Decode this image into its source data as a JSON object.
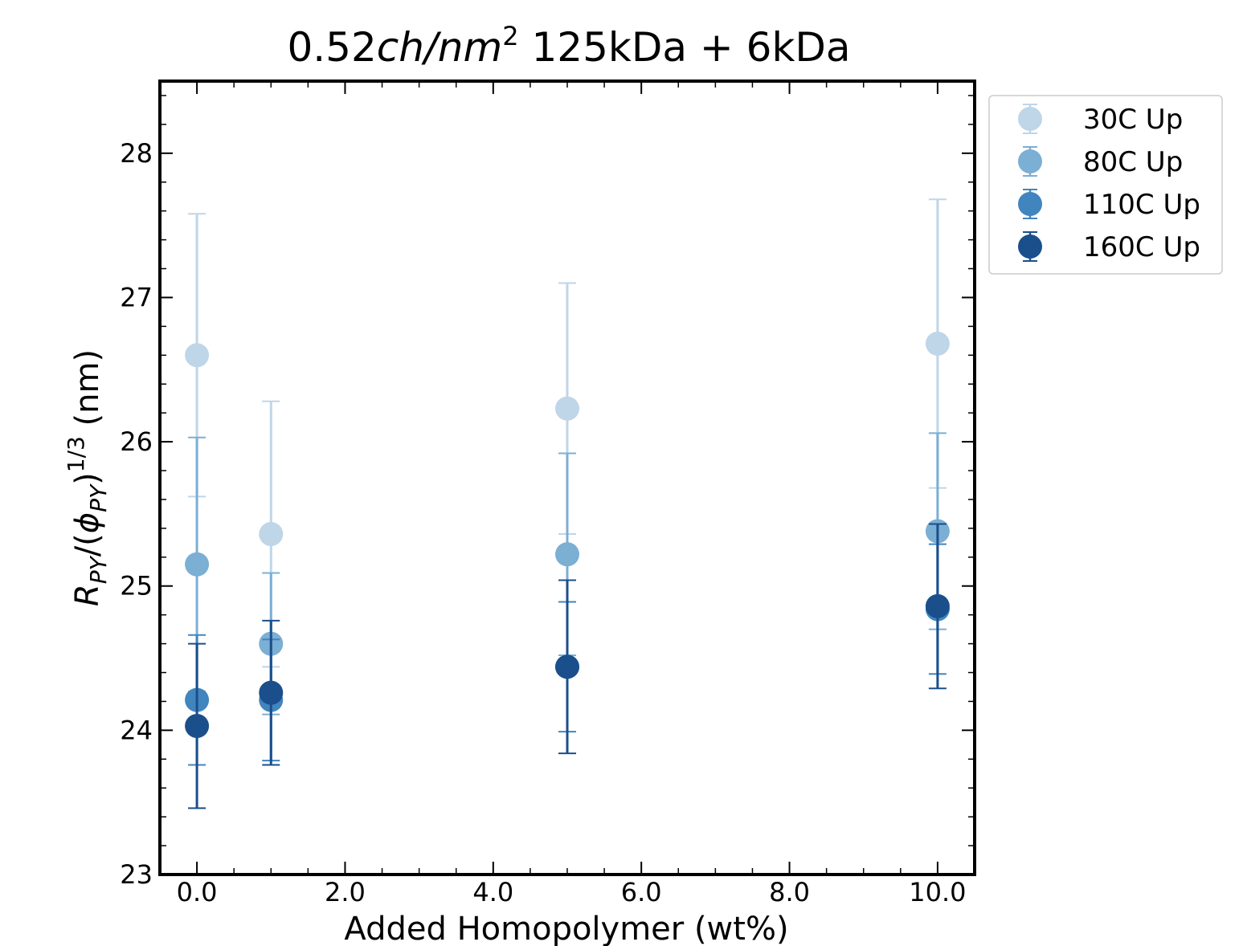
{
  "chart_data": {
    "type": "scatter",
    "title": {
      "part1": "0.52",
      "part2_italic": "ch/nm",
      "sup": "2",
      "part3": " 125kDa + 6kDa"
    },
    "xlabel": "Added Homopolymer (wt%)",
    "ylabel": {
      "r": "R",
      "r_sub": "PY",
      "mid": "/(",
      "phi": "ϕ",
      "phi_sub": "PY",
      "close": ")",
      "sup": "1/3",
      "unit": " (nm)"
    },
    "xlim": [
      -0.5,
      10.5
    ],
    "ylim": [
      23,
      28.5
    ],
    "x_ticks": [
      0,
      2,
      4,
      6,
      8,
      10
    ],
    "x_tick_labels": [
      "0.0",
      "2.0",
      "4.0",
      "6.0",
      "8.0",
      "10.0"
    ],
    "y_ticks": [
      23,
      24,
      25,
      26,
      27,
      28
    ],
    "y_tick_labels": [
      "23",
      "24",
      "25",
      "26",
      "27",
      "28"
    ],
    "x_minor_step": 0.5,
    "y_minor_step": 0.2,
    "grid": false,
    "legend_position": "outside-top-right",
    "series": [
      {
        "name": "30C Up",
        "color": "#bfd5e8",
        "x": [
          0,
          1,
          5,
          10
        ],
        "y": [
          26.6,
          25.36,
          26.23,
          26.68
        ],
        "err": [
          0.98,
          0.92,
          0.87,
          1.0
        ]
      },
      {
        "name": "80C Up",
        "color": "#7bafd4",
        "x": [
          0,
          1,
          5,
          10
        ],
        "y": [
          25.15,
          24.6,
          25.22,
          25.38
        ],
        "err": [
          0.88,
          0.49,
          0.7,
          0.68
        ]
      },
      {
        "name": "110C Up",
        "color": "#4185bf",
        "x": [
          0,
          1,
          5,
          10
        ],
        "y": [
          24.21,
          24.21,
          24.44,
          24.84
        ],
        "err": [
          0.45,
          0.42,
          0.45,
          0.45
        ]
      },
      {
        "name": "160C Up",
        "color": "#1a4f8c",
        "x": [
          0,
          1,
          5,
          10
        ],
        "y": [
          24.03,
          24.26,
          24.44,
          24.86
        ],
        "err": [
          0.57,
          0.5,
          0.6,
          0.57
        ]
      }
    ]
  }
}
